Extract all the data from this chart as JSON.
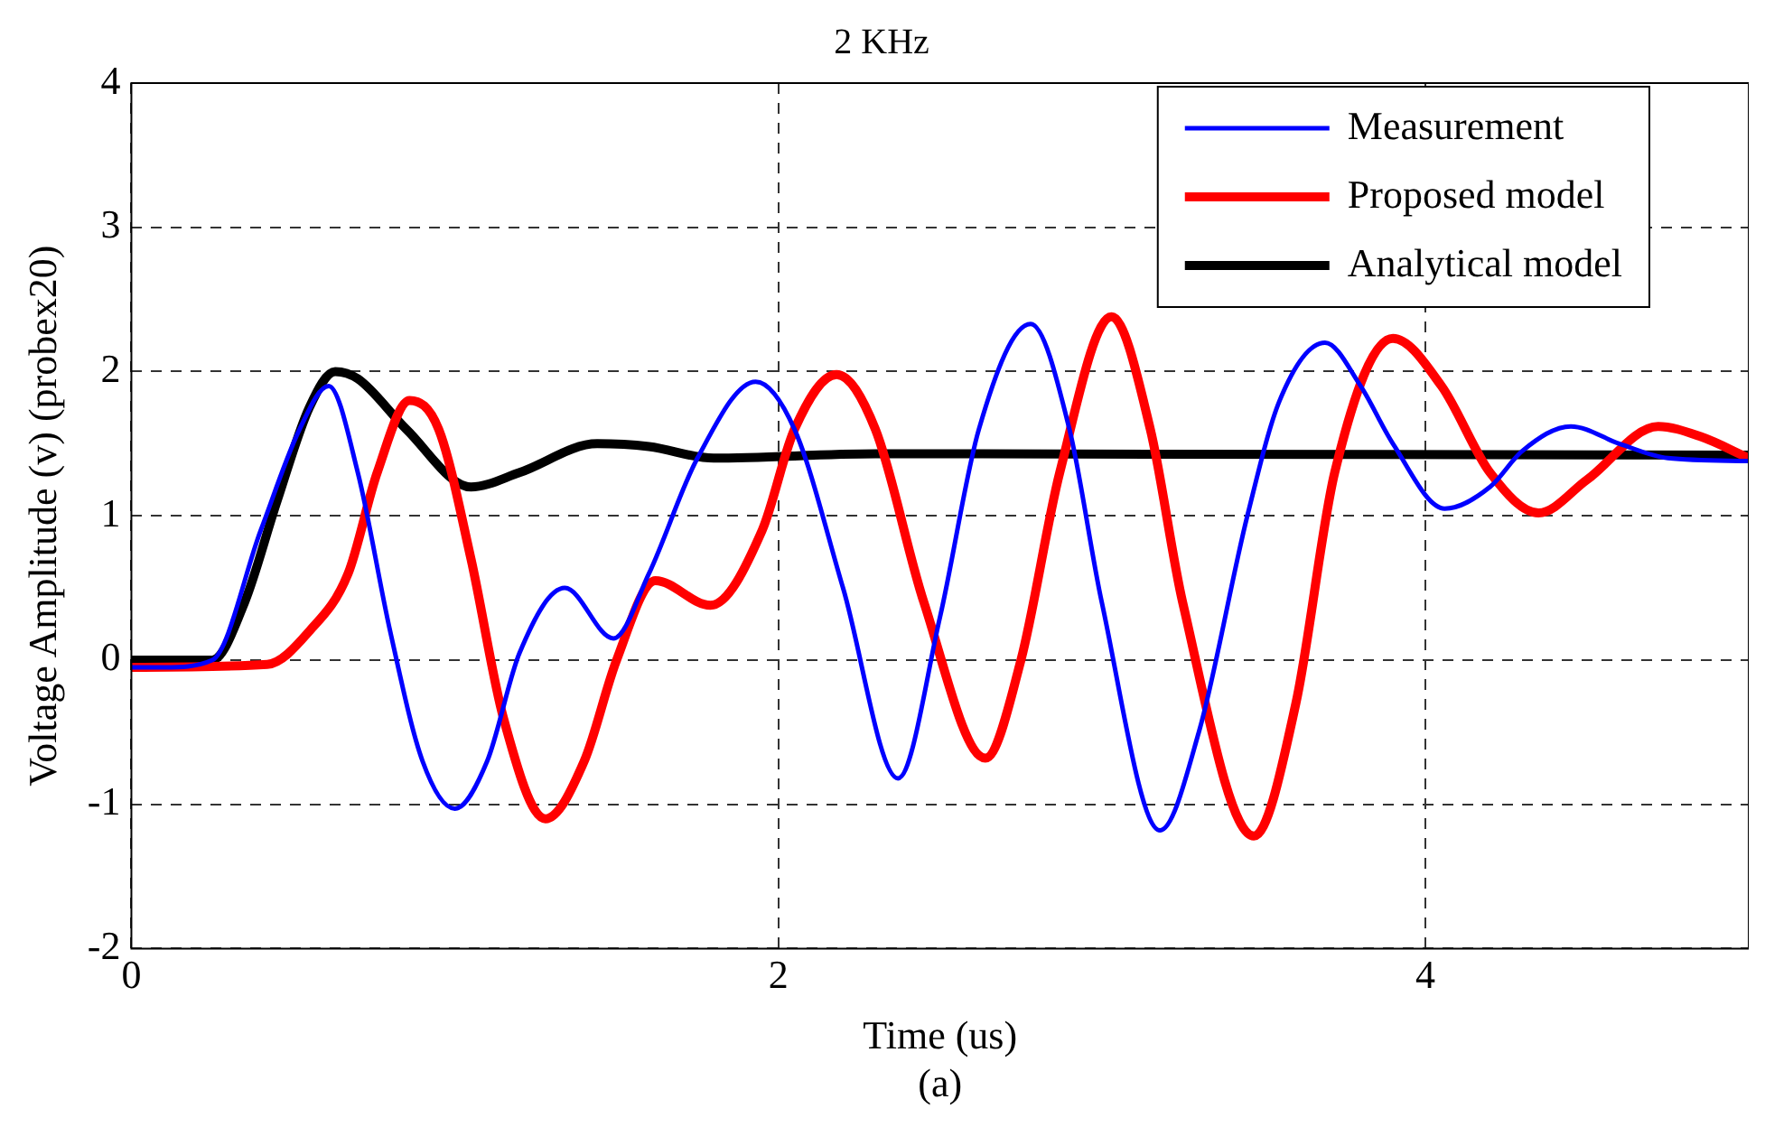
{
  "chart_data": {
    "type": "line",
    "title": "2 KHz",
    "xlabel": "Time (us)",
    "ylabel": "Voltage Amplitude (v) (probex20)",
    "annotations": [
      "(a)"
    ],
    "xlim": [
      0,
      5
    ],
    "xticks": [
      0,
      2,
      4
    ],
    "ylim": [
      -2,
      4
    ],
    "yticks": [
      -2,
      -1,
      0,
      1,
      2,
      3,
      4
    ],
    "grid": true,
    "legend": "top right",
    "marker": "none",
    "line_style": "solid",
    "series": [
      {
        "name": "Measurement",
        "color": "#0000ff",
        "x": [
          0,
          0.1,
          0.25,
          0.4,
          0.52,
          0.61,
          0.7,
          0.8,
          0.9,
          1.0,
          1.1,
          1.2,
          1.34,
          1.49,
          1.6,
          1.75,
          1.93,
          2.05,
          2.2,
          2.37,
          2.5,
          2.62,
          2.78,
          2.9,
          3.0,
          3.18,
          3.3,
          3.45,
          3.55,
          3.69,
          3.8,
          3.9,
          4.06,
          4.2,
          4.3,
          4.45,
          4.6,
          4.75,
          5
        ],
        "values": [
          -0.05,
          -0.05,
          0,
          0.9,
          1.6,
          1.9,
          1.3,
          0.2,
          -0.7,
          -1.03,
          -0.7,
          0.05,
          0.5,
          0.15,
          0.6,
          1.4,
          1.93,
          1.6,
          0.5,
          -0.82,
          0.3,
          1.6,
          2.33,
          1.6,
          0.4,
          -1.18,
          -0.5,
          1.0,
          1.8,
          2.2,
          1.9,
          1.5,
          1.05,
          1.2,
          1.45,
          1.62,
          1.5,
          1.4,
          1.38
        ]
      },
      {
        "name": "Proposed model",
        "color": "#ff0000",
        "x": [
          0,
          0.42,
          0.55,
          0.67,
          0.76,
          0.86,
          0.95,
          1.05,
          1.15,
          1.28,
          1.4,
          1.5,
          1.62,
          1.79,
          1.95,
          2.05,
          2.18,
          2.3,
          2.45,
          2.64,
          2.75,
          2.87,
          3.03,
          3.15,
          3.25,
          3.47,
          3.6,
          3.72,
          3.9,
          4.05,
          4.2,
          4.35,
          4.5,
          4.72,
          4.85,
          5
        ],
        "values": [
          -0.05,
          -0.03,
          0.2,
          0.6,
          1.3,
          1.8,
          1.6,
          0.7,
          -0.4,
          -1.1,
          -0.7,
          0.0,
          0.55,
          0.38,
          0.9,
          1.6,
          1.98,
          1.6,
          0.4,
          -0.68,
          0.0,
          1.3,
          2.38,
          1.6,
          0.4,
          -1.22,
          -0.3,
          1.3,
          2.23,
          1.9,
          1.3,
          1.02,
          1.25,
          1.62,
          1.55,
          1.4
        ]
      },
      {
        "name": "Analytical model",
        "color": "#000000",
        "x": [
          0,
          0.25,
          0.35,
          0.45,
          0.55,
          0.63,
          0.7,
          0.85,
          1.05,
          1.2,
          1.44,
          1.6,
          1.8,
          2.3,
          5
        ],
        "values": [
          0,
          0,
          0.4,
          1.1,
          1.75,
          2.0,
          1.95,
          1.6,
          1.2,
          1.3,
          1.5,
          1.48,
          1.4,
          1.43,
          1.42
        ]
      }
    ]
  }
}
